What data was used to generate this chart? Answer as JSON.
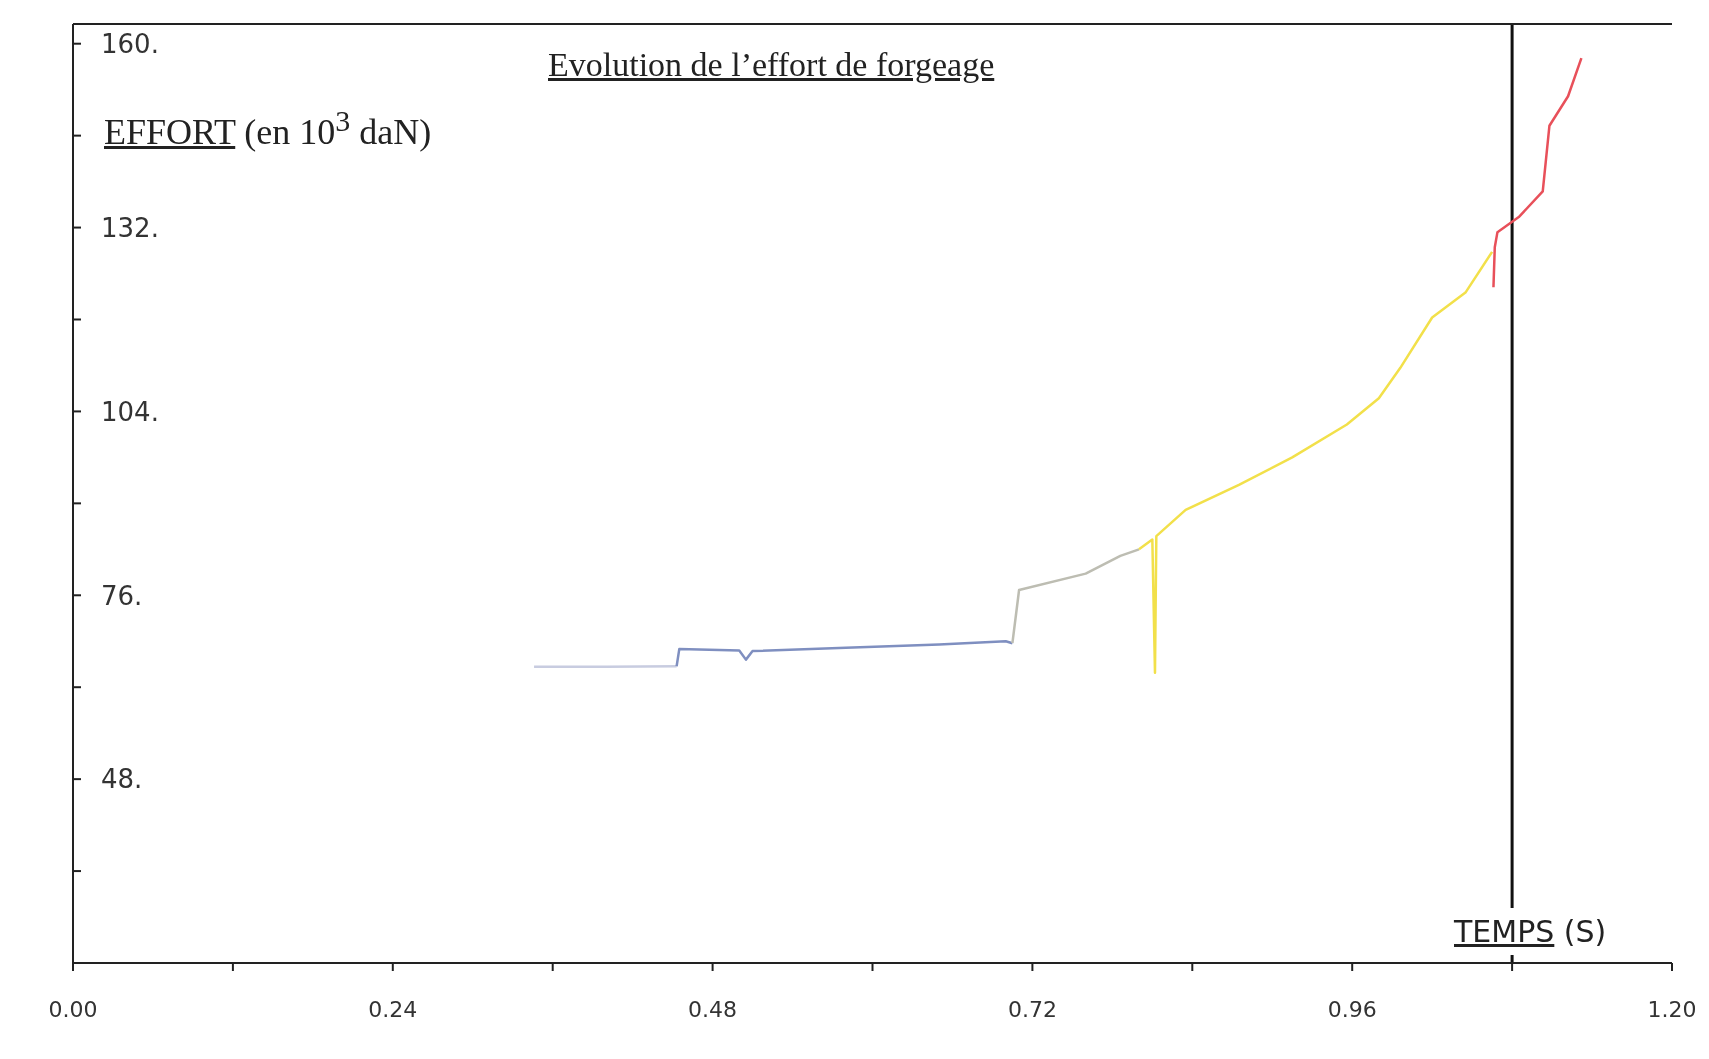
{
  "chart_data": {
    "type": "line",
    "title": "Evolution de l’effort de forgeage",
    "xlabel": "TEMPS (S)",
    "ylabel": "EFFORT (en 10$^{3}$ daN)",
    "xlim": [
      0,
      1.2
    ],
    "ylim": [
      20,
      163
    ],
    "xticks": [
      {
        "value": 0,
        "label": "0.00"
      },
      {
        "value": 0.12,
        "label": null
      },
      0.24,
      {
        "value": 0.36,
        "label": null
      },
      0.48,
      {
        "value": 0.6,
        "label": null
      },
      0.72,
      {
        "value": 0.84,
        "label": null
      },
      0.96,
      {
        "value": 1.08,
        "label": null
      },
      {
        "value": 1.2,
        "label": "1.20"
      }
    ],
    "yticks": [
      {
        "value": 34,
        "label": null
      },
      {
        "value": 48,
        "label": "48."
      },
      {
        "value": 62,
        "label": null
      },
      {
        "value": 76,
        "label": "76."
      },
      {
        "value": 90,
        "label": null
      },
      {
        "value": 104,
        "label": "104."
      },
      {
        "value": 118,
        "label": null
      },
      {
        "value": 132,
        "label": "132."
      },
      {
        "value": 146,
        "label": null
      },
      {
        "value": 160,
        "label": "160."
      }
    ],
    "marker": "none",
    "line_style": "solid",
    "ref_lines": [
      {
        "axis": "x",
        "value": 1.08,
        "color": "#111111"
      }
    ],
    "series": [
      {
        "color": "#c8cce0",
        "x": [
          0.346,
          0.4,
          0.453
        ],
        "values": [
          65.1,
          65.1,
          65.2
        ]
      },
      {
        "color": "#7f8fc0",
        "x": [
          0.453,
          0.455,
          0.5,
          0.505,
          0.51,
          0.58,
          0.65,
          0.7,
          0.705
        ],
        "values": [
          65.2,
          67.8,
          67.6,
          66.2,
          67.5,
          68.0,
          68.5,
          69.0,
          68.7
        ]
      },
      {
        "color": "#bdbdb2",
        "x": [
          0.705,
          0.71,
          0.76,
          0.786,
          0.8
        ],
        "values": [
          68.7,
          76.8,
          79.3,
          82.0,
          83.0
        ]
      },
      {
        "color": "#f2e04a",
        "x": [
          0.8,
          0.81,
          0.812,
          0.813,
          0.835,
          0.875,
          0.915,
          0.956,
          0.98,
          0.996,
          1.02,
          1.045,
          1.065
        ],
        "values": [
          83.0,
          84.5,
          64.2,
          85.0,
          89.0,
          92.8,
          97.0,
          102.0,
          106.0,
          110.6,
          118.3,
          122.1,
          128.3
        ]
      },
      {
        "color": "#e8505a",
        "x": [
          1.066,
          1.067,
          1.069,
          1.085,
          1.103,
          1.108,
          1.122,
          1.132
        ],
        "values": [
          122.9,
          129.0,
          131.3,
          133.6,
          137.5,
          147.5,
          152.0,
          157.8
        ]
      }
    ]
  }
}
